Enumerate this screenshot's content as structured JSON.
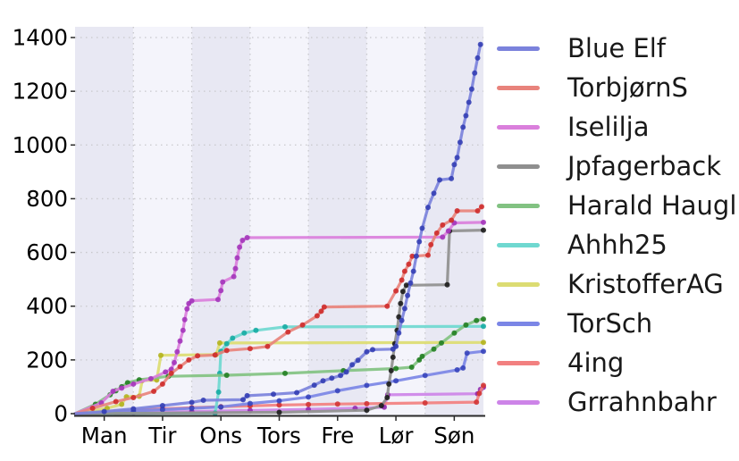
{
  "chart_data": {
    "type": "line",
    "title": "",
    "xlabel": "",
    "ylabel": "",
    "x_tick_labels": [
      "Man",
      "Tir",
      "Ons",
      "Tors",
      "Fre",
      "Lør",
      "Søn"
    ],
    "y_ticks": [
      0,
      200,
      400,
      600,
      800,
      1000,
      1200,
      1400
    ],
    "ylim": [
      0,
      1400
    ],
    "xlim_days": [
      0,
      7
    ],
    "grid": "dotted",
    "legend_position": "right-outside",
    "band_color_dark": "#e8e8f3",
    "band_color_light": "#f4f4fb",
    "grid_color": "#c8c8cc",
    "axis_color": "#2a2a2a",
    "tick_label_color": "#000000",
    "series": [
      {
        "name": "Blue Elf",
        "color": "#7b82dc",
        "marker_color": "#2f3ab2",
        "points": [
          [
            0,
            0
          ],
          [
            0.5,
            8
          ],
          [
            1,
            18
          ],
          [
            1.5,
            30
          ],
          [
            2,
            42
          ],
          [
            2.2,
            50
          ],
          [
            2.88,
            52
          ],
          [
            2.95,
            67
          ],
          [
            3.4,
            72
          ],
          [
            3.8,
            78
          ],
          [
            4.1,
            106
          ],
          [
            4.25,
            122
          ],
          [
            4.4,
            132
          ],
          [
            4.55,
            142
          ],
          [
            4.65,
            155
          ],
          [
            4.75,
            182
          ],
          [
            4.85,
            199
          ],
          [
            5.0,
            230
          ],
          [
            5.1,
            238
          ],
          [
            5.45,
            240
          ],
          [
            5.5,
            250
          ],
          [
            5.55,
            300
          ],
          [
            5.6,
            347
          ],
          [
            5.65,
            391
          ],
          [
            5.7,
            440
          ],
          [
            5.75,
            486
          ],
          [
            5.8,
            530
          ],
          [
            5.85,
            586
          ],
          [
            5.9,
            640
          ],
          [
            5.95,
            690
          ],
          [
            6.05,
            768
          ],
          [
            6.15,
            820
          ],
          [
            6.25,
            870
          ],
          [
            6.45,
            875
          ],
          [
            6.5,
            927
          ],
          [
            6.55,
            953
          ],
          [
            6.6,
            1010
          ],
          [
            6.65,
            1066
          ],
          [
            6.7,
            1109
          ],
          [
            6.75,
            1159
          ],
          [
            6.8,
            1208
          ],
          [
            6.85,
            1268
          ],
          [
            6.9,
            1324
          ],
          [
            6.95,
            1374
          ]
        ]
      },
      {
        "name": "TorbjørnS",
        "color": "#e8837c",
        "marker_color": "#cc2626",
        "points": [
          [
            0,
            0
          ],
          [
            0.3,
            20
          ],
          [
            0.7,
            45
          ],
          [
            1,
            60
          ],
          [
            1.35,
            83
          ],
          [
            1.5,
            110
          ],
          [
            1.65,
            150
          ],
          [
            1.8,
            175
          ],
          [
            1.95,
            200
          ],
          [
            2.1,
            215
          ],
          [
            2.4,
            218
          ],
          [
            2.6,
            235
          ],
          [
            3.0,
            242
          ],
          [
            3.3,
            250
          ],
          [
            3.65,
            304
          ],
          [
            3.9,
            330
          ],
          [
            4.15,
            364
          ],
          [
            4.22,
            381
          ],
          [
            4.27,
            397
          ],
          [
            5.35,
            400
          ],
          [
            5.5,
            457
          ],
          [
            5.6,
            497
          ],
          [
            5.65,
            530
          ],
          [
            5.72,
            556
          ],
          [
            5.78,
            586
          ],
          [
            6.05,
            590
          ],
          [
            6.1,
            629
          ],
          [
            6.2,
            672
          ],
          [
            6.3,
            702
          ],
          [
            6.45,
            720
          ],
          [
            6.55,
            755
          ],
          [
            6.9,
            755
          ],
          [
            6.97,
            770
          ]
        ]
      },
      {
        "name": "Iselilja",
        "color": "#da7fdc",
        "marker_color": "#a030b8",
        "points": [
          [
            0,
            0
          ],
          [
            0.45,
            40
          ],
          [
            0.65,
            83
          ],
          [
            0.8,
            95
          ],
          [
            1.0,
            110
          ],
          [
            1.3,
            130
          ],
          [
            1.55,
            155
          ],
          [
            1.65,
            165
          ],
          [
            1.7,
            190
          ],
          [
            1.75,
            230
          ],
          [
            1.8,
            270
          ],
          [
            1.85,
            310
          ],
          [
            1.88,
            350
          ],
          [
            1.92,
            390
          ],
          [
            1.95,
            410
          ],
          [
            2.0,
            420
          ],
          [
            2.45,
            425
          ],
          [
            2.5,
            458
          ],
          [
            2.53,
            490
          ],
          [
            2.72,
            510
          ],
          [
            2.75,
            540
          ],
          [
            2.78,
            580
          ],
          [
            2.82,
            620
          ],
          [
            2.87,
            645
          ],
          [
            2.95,
            655
          ],
          [
            6.3,
            657
          ],
          [
            6.4,
            680
          ],
          [
            6.5,
            710
          ],
          [
            7,
            712
          ]
        ]
      },
      {
        "name": "Jpfagerback",
        "color": "#8f8f8f",
        "marker_color": "#141414",
        "points": [
          [
            0,
            0
          ],
          [
            3.5,
            5
          ],
          [
            5.0,
            13
          ],
          [
            5.25,
            30
          ],
          [
            5.35,
            60
          ],
          [
            5.38,
            110
          ],
          [
            5.42,
            160
          ],
          [
            5.45,
            210
          ],
          [
            5.48,
            260
          ],
          [
            5.52,
            310
          ],
          [
            5.55,
            360
          ],
          [
            5.58,
            410
          ],
          [
            5.62,
            455
          ],
          [
            5.68,
            478
          ],
          [
            6.38,
            480
          ],
          [
            6.42,
            680
          ],
          [
            7,
            683
          ]
        ]
      },
      {
        "name": "Harald Haugl",
        "color": "#82c282",
        "marker_color": "#1b7a1b",
        "points": [
          [
            0,
            0
          ],
          [
            0.35,
            35
          ],
          [
            0.6,
            70
          ],
          [
            0.7,
            85
          ],
          [
            0.8,
            100
          ],
          [
            0.9,
            115
          ],
          [
            1.1,
            126
          ],
          [
            1.6,
            139
          ],
          [
            2.6,
            143
          ],
          [
            3.6,
            150
          ],
          [
            4.6,
            160
          ],
          [
            5.5,
            168
          ],
          [
            5.77,
            173
          ],
          [
            5.9,
            200
          ],
          [
            5.95,
            213
          ],
          [
            6.15,
            240
          ],
          [
            6.28,
            263
          ],
          [
            6.5,
            300
          ],
          [
            6.7,
            330
          ],
          [
            6.88,
            347
          ],
          [
            7,
            352
          ]
        ]
      },
      {
        "name": "Ahhh25",
        "color": "#6fd8d0",
        "marker_color": "#0fa8a0",
        "points": [
          [
            0,
            0
          ],
          [
            2.4,
            2
          ],
          [
            2.46,
            80
          ],
          [
            2.48,
            150
          ],
          [
            2.5,
            232
          ],
          [
            2.6,
            260
          ],
          [
            2.7,
            281
          ],
          [
            2.9,
            300
          ],
          [
            3.1,
            310
          ],
          [
            3.6,
            323
          ],
          [
            7,
            325
          ]
        ]
      },
      {
        "name": "KristofferAG",
        "color": "#dcdc72",
        "marker_color": "#b0b017",
        "points": [
          [
            0,
            0
          ],
          [
            0.55,
            20
          ],
          [
            0.8,
            35
          ],
          [
            0.88,
            63
          ],
          [
            1.1,
            65
          ],
          [
            1.15,
            123
          ],
          [
            1.4,
            125
          ],
          [
            1.47,
            217
          ],
          [
            2.42,
            220
          ],
          [
            2.48,
            263
          ],
          [
            7,
            265
          ]
        ]
      },
      {
        "name": "TorSch",
        "color": "#7b86e6",
        "marker_color": "#3340b8",
        "points": [
          [
            0,
            0
          ],
          [
            0.5,
            5
          ],
          [
            1,
            10
          ],
          [
            1.5,
            15
          ],
          [
            2,
            20
          ],
          [
            2.5,
            25
          ],
          [
            3,
            38
          ],
          [
            3.5,
            48
          ],
          [
            4,
            62
          ],
          [
            4.5,
            85
          ],
          [
            5,
            105
          ],
          [
            5.5,
            122
          ],
          [
            6,
            142
          ],
          [
            6.55,
            163
          ],
          [
            6.65,
            170
          ],
          [
            6.72,
            225
          ],
          [
            7,
            232
          ]
        ]
      },
      {
        "name": "4ing",
        "color": "#f28080",
        "marker_color": "#d03030",
        "points": [
          [
            0,
            0
          ],
          [
            0.5,
            8
          ],
          [
            1,
            13
          ],
          [
            1.5,
            18
          ],
          [
            2,
            22
          ],
          [
            2.5,
            26
          ],
          [
            3,
            29
          ],
          [
            3.5,
            32
          ],
          [
            4,
            34
          ],
          [
            4.5,
            36
          ],
          [
            5,
            37
          ],
          [
            6,
            40
          ],
          [
            6.88,
            43
          ],
          [
            6.93,
            75
          ],
          [
            7,
            105
          ]
        ]
      },
      {
        "name": "Grrahnbahr",
        "color": "#cd84e8",
        "marker_color": "#8e24aa",
        "points": [
          [
            0,
            0
          ],
          [
            1,
            4
          ],
          [
            2,
            8
          ],
          [
            3,
            12
          ],
          [
            4,
            16
          ],
          [
            4.8,
            20
          ],
          [
            5.3,
            24
          ],
          [
            5.36,
            70
          ],
          [
            6.9,
            74
          ],
          [
            6.95,
            90
          ],
          [
            7,
            98
          ]
        ]
      }
    ]
  }
}
